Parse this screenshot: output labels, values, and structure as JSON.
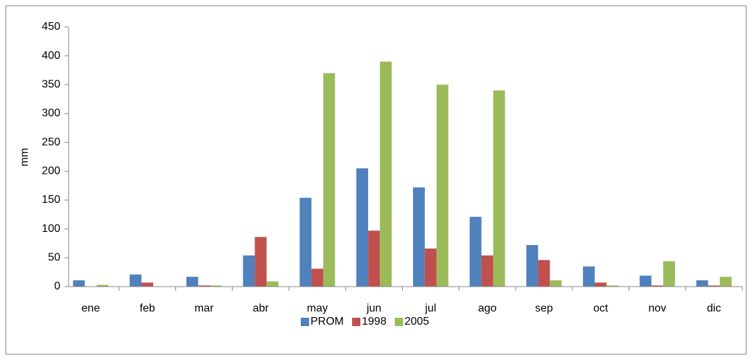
{
  "chart_data": {
    "type": "bar",
    "y_label": "mm",
    "categories": [
      "ene",
      "feb",
      "mar",
      "abr",
      "may",
      "jun",
      "jul",
      "ago",
      "sep",
      "oct",
      "nov",
      "dic"
    ],
    "series": [
      {
        "name": "PROM",
        "color": "#4f81bd",
        "values": [
          11,
          21,
          17,
          54,
          154,
          205,
          172,
          121,
          72,
          35,
          19,
          11
        ]
      },
      {
        "name": "1998",
        "color": "#c0504d",
        "values": [
          0,
          7,
          2,
          86,
          31,
          97,
          66,
          54,
          46,
          7,
          2,
          2
        ]
      },
      {
        "name": "2005",
        "color": "#9bbb59",
        "values": [
          3,
          0,
          2,
          9,
          370,
          390,
          350,
          340,
          11,
          2,
          44,
          17
        ]
      }
    ],
    "ylim": [
      0,
      450
    ],
    "yticks": [
      0,
      50,
      100,
      150,
      200,
      250,
      300,
      350,
      400,
      450
    ],
    "grid": false,
    "legend": "bottom"
  }
}
